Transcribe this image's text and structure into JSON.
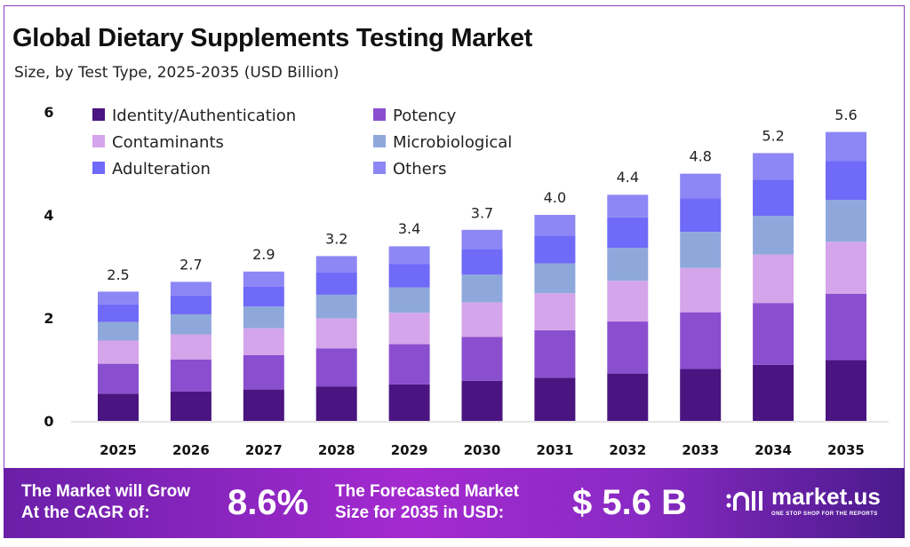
{
  "title": "Global Dietary Supplements Testing Market",
  "subtitle": "Size, by Test Type, 2025-2035 (USD Billion)",
  "chart_data": {
    "type": "bar",
    "stacked": true,
    "categories": [
      "2025",
      "2026",
      "2027",
      "2028",
      "2029",
      "2030",
      "2031",
      "2032",
      "2033",
      "2034",
      "2035"
    ],
    "totals": [
      2.5,
      2.7,
      2.9,
      3.2,
      3.4,
      3.7,
      4.0,
      4.4,
      4.8,
      5.2,
      5.6
    ],
    "total_labels": [
      "2.5",
      "2.7",
      "2.9",
      "3.2",
      "3.4",
      "3.7",
      "4.0",
      "4.4",
      "4.8",
      "5.2",
      "5.6"
    ],
    "series": [
      {
        "name": "Identity/Authentication",
        "color": "#4a1580",
        "values": [
          0.53,
          0.57,
          0.61,
          0.67,
          0.71,
          0.78,
          0.84,
          0.92,
          1.01,
          1.09,
          1.18
        ]
      },
      {
        "name": "Potency",
        "color": "#8a4fcf",
        "values": [
          0.58,
          0.62,
          0.67,
          0.74,
          0.78,
          0.85,
          0.92,
          1.01,
          1.1,
          1.2,
          1.29
        ]
      },
      {
        "name": "Contaminants",
        "color": "#d4a5ea",
        "values": [
          0.45,
          0.49,
          0.52,
          0.58,
          0.61,
          0.67,
          0.72,
          0.79,
          0.86,
          0.94,
          1.01
        ]
      },
      {
        "name": "Microbiological",
        "color": "#8fa8dc",
        "values": [
          0.36,
          0.39,
          0.42,
          0.46,
          0.49,
          0.54,
          0.58,
          0.64,
          0.7,
          0.75,
          0.81
        ]
      },
      {
        "name": "Adulteration",
        "color": "#6f6af7",
        "values": [
          0.34,
          0.36,
          0.39,
          0.43,
          0.46,
          0.5,
          0.54,
          0.59,
          0.65,
          0.7,
          0.76
        ]
      },
      {
        "name": "Others",
        "color": "#8d87f5",
        "values": [
          0.25,
          0.27,
          0.29,
          0.32,
          0.34,
          0.37,
          0.4,
          0.44,
          0.48,
          0.52,
          0.56
        ]
      }
    ],
    "yticks": [
      "0",
      "2",
      "4",
      "6"
    ],
    "ylim": [
      0,
      6
    ],
    "grid": false,
    "legend_position": "top-left"
  },
  "footer": {
    "cagr_text_1": "The Market will Grow",
    "cagr_text_2": "At the CAGR of:",
    "cagr_value": "8.6%",
    "forecast_text_1": "The Forecasted Market",
    "forecast_text_2": "Size for 2035 in USD:",
    "forecast_value": "$ 5.6 B",
    "logo_name": "market.us",
    "logo_tagline": "ONE STOP SHOP FOR THE REPORTS"
  }
}
